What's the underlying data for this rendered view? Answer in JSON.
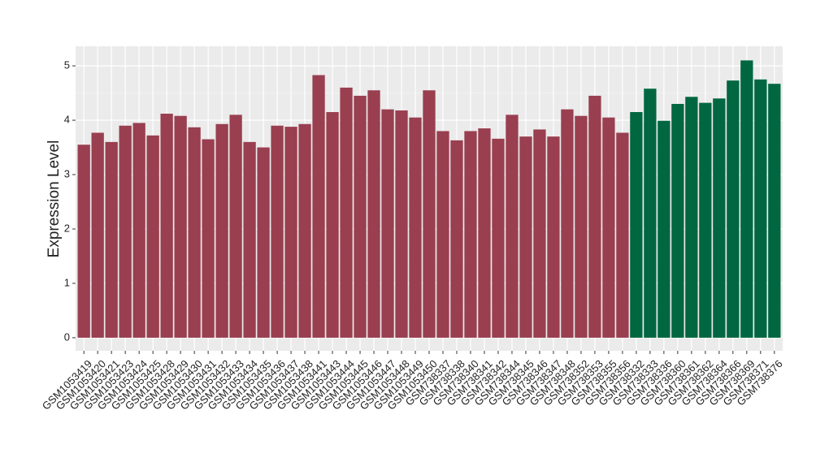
{
  "chart_data": {
    "type": "bar",
    "y_label": "Expression Level",
    "categories": [
      "GSM1053419",
      "GSM1053420",
      "GSM1053421",
      "GSM1053423",
      "GSM1053424",
      "GSM1053425",
      "GSM1053428",
      "GSM1053429",
      "GSM1053430",
      "GSM1053431",
      "GSM1053432",
      "GSM1053433",
      "GSM1053434",
      "GSM1053435",
      "GSM1053436",
      "GSM1053437",
      "GSM1053438",
      "GSM1053441",
      "GSM1053443",
      "GSM1053444",
      "GSM1053445",
      "GSM1053446",
      "GSM1053447",
      "GSM1053448",
      "GSM1053449",
      "GSM1053450",
      "GSM738337",
      "GSM738338",
      "GSM738340",
      "GSM738341",
      "GSM738342",
      "GSM738344",
      "GSM738345",
      "GSM738346",
      "GSM738347",
      "GSM738348",
      "GSM738352",
      "GSM738353",
      "GSM738355",
      "GSM738356",
      "GSM738332",
      "GSM738333",
      "GSM738336",
      "GSM738360",
      "GSM738361",
      "GSM738362",
      "GSM738364",
      "GSM738366",
      "GSM738369",
      "GSM738371",
      "GSM738376"
    ],
    "values": [
      3.55,
      3.77,
      3.6,
      3.9,
      3.95,
      3.72,
      4.12,
      4.08,
      3.87,
      3.65,
      3.93,
      4.1,
      3.6,
      3.5,
      3.9,
      3.88,
      3.93,
      4.83,
      4.15,
      4.6,
      4.45,
      4.55,
      4.2,
      4.18,
      4.05,
      4.55,
      3.8,
      3.63,
      3.8,
      3.85,
      3.66,
      4.1,
      3.7,
      3.83,
      3.7,
      4.2,
      4.08,
      4.45,
      4.05,
      3.77,
      4.15,
      4.58,
      3.99,
      4.3,
      4.43,
      4.32,
      4.4,
      4.73,
      5.1,
      4.75,
      4.67
    ],
    "colors": [
      "#993f50",
      "#993f50",
      "#993f50",
      "#993f50",
      "#993f50",
      "#993f50",
      "#993f50",
      "#993f50",
      "#993f50",
      "#993f50",
      "#993f50",
      "#993f50",
      "#993f50",
      "#993f50",
      "#993f50",
      "#993f50",
      "#993f50",
      "#993f50",
      "#993f50",
      "#993f50",
      "#993f50",
      "#993f50",
      "#993f50",
      "#993f50",
      "#993f50",
      "#993f50",
      "#993f50",
      "#993f50",
      "#993f50",
      "#993f50",
      "#993f50",
      "#993f50",
      "#993f50",
      "#993f50",
      "#993f50",
      "#993f50",
      "#993f50",
      "#993f50",
      "#993f50",
      "#993f50",
      "#006741",
      "#006741",
      "#006741",
      "#006741",
      "#006741",
      "#006741",
      "#006741",
      "#006741",
      "#006741",
      "#006741",
      "#006741"
    ],
    "ylim": [
      -0.24,
      5.36
    ],
    "yticks": [
      0,
      1,
      2,
      3,
      4,
      5
    ],
    "grid": true
  }
}
